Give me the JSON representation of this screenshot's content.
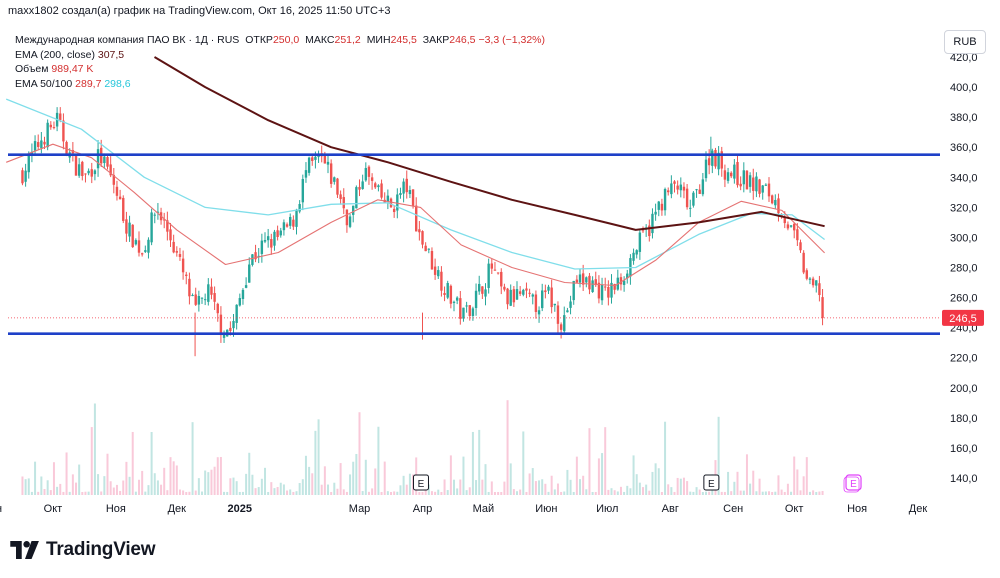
{
  "caption": "maxx1802 создал(а) график на TradingView.com, Окт 16, 2025 11:50 UTC+3",
  "legend": {
    "symbol": "Международная компания ПАО ВК · 1Д · RUS",
    "open_label": "ОТКР",
    "open": "250,0",
    "high_label": "МАКС",
    "high": "251,2",
    "low_label": "МИН",
    "low": "245,5",
    "close_label": "ЗАКР",
    "close": "246,5",
    "change": "−3,3 (−1,32%)",
    "ema200_label": "EMA (200, close)",
    "ema200": "307,5",
    "volume_label": "Объем",
    "volume": "989,47 K",
    "ema50_100_label": "EMA 50/100",
    "ema50": "289,7",
    "ema100": "298,6"
  },
  "currency_button": "RUB",
  "brand": "TradingView",
  "colors": {
    "up": "#26a69a",
    "down": "#ef5350",
    "level_lines": "#1e40c8",
    "ema200": "#5d1313",
    "ema50": "#e57373",
    "ema100": "#80deea",
    "price_badge": "#f23645"
  },
  "chart_data": {
    "type": "candlestick",
    "x_ticks": [
      "Сен",
      "Окт",
      "Ноя",
      "Дек",
      "2025",
      "Мар",
      "Апр",
      "Май",
      "Июн",
      "Июл",
      "Авг",
      "Сен",
      "Окт",
      "Ноя",
      "Дек"
    ],
    "y_ticks": [
      "420,0",
      "400,0",
      "380,0",
      "360,0",
      "340,0",
      "320,0",
      "300,0",
      "280,0",
      "260,0",
      "240,0",
      "220,0",
      "200,0",
      "180,0",
      "160,0",
      "140,0"
    ],
    "ylim": [
      135,
      425
    ],
    "last_price": "246,5",
    "horizontal_levels": [
      355,
      236
    ],
    "close_series": [
      {
        "d": "2024-09-16",
        "v": 343
      },
      {
        "d": "2024-09-25",
        "v": 365
      },
      {
        "d": "2024-10-03",
        "v": 378
      },
      {
        "d": "2024-10-10",
        "v": 352
      },
      {
        "d": "2024-10-17",
        "v": 340
      },
      {
        "d": "2024-10-24",
        "v": 355
      },
      {
        "d": "2024-10-31",
        "v": 335
      },
      {
        "d": "2024-11-07",
        "v": 305
      },
      {
        "d": "2024-11-14",
        "v": 290
      },
      {
        "d": "2024-11-21",
        "v": 320
      },
      {
        "d": "2024-11-28",
        "v": 300
      },
      {
        "d": "2024-12-05",
        "v": 272
      },
      {
        "d": "2024-12-10",
        "v": 250
      },
      {
        "d": "2024-12-16",
        "v": 265
      },
      {
        "d": "2024-12-23",
        "v": 240
      },
      {
        "d": "2024-12-28",
        "v": 238
      },
      {
        "d": "2025-01-06",
        "v": 285
      },
      {
        "d": "2025-01-13",
        "v": 295
      },
      {
        "d": "2025-01-20",
        "v": 300
      },
      {
        "d": "2025-01-27",
        "v": 310
      },
      {
        "d": "2025-02-03",
        "v": 345
      },
      {
        "d": "2025-02-10",
        "v": 352
      },
      {
        "d": "2025-02-17",
        "v": 335
      },
      {
        "d": "2025-02-24",
        "v": 310
      },
      {
        "d": "2025-03-03",
        "v": 345
      },
      {
        "d": "2025-03-10",
        "v": 328
      },
      {
        "d": "2025-03-17",
        "v": 320
      },
      {
        "d": "2025-03-24",
        "v": 335
      },
      {
        "d": "2025-03-31",
        "v": 300
      },
      {
        "d": "2025-04-07",
        "v": 280
      },
      {
        "d": "2025-04-14",
        "v": 262
      },
      {
        "d": "2025-04-21",
        "v": 248
      },
      {
        "d": "2025-04-28",
        "v": 262
      },
      {
        "d": "2025-05-05",
        "v": 280
      },
      {
        "d": "2025-05-12",
        "v": 258
      },
      {
        "d": "2025-05-19",
        "v": 262
      },
      {
        "d": "2025-05-26",
        "v": 255
      },
      {
        "d": "2025-06-02",
        "v": 262
      },
      {
        "d": "2025-06-09",
        "v": 243
      },
      {
        "d": "2025-06-16",
        "v": 272
      },
      {
        "d": "2025-06-23",
        "v": 270
      },
      {
        "d": "2025-06-30",
        "v": 262
      },
      {
        "d": "2025-07-07",
        "v": 270
      },
      {
        "d": "2025-07-14",
        "v": 290
      },
      {
        "d": "2025-07-21",
        "v": 305
      },
      {
        "d": "2025-07-28",
        "v": 325
      },
      {
        "d": "2025-08-04",
        "v": 335
      },
      {
        "d": "2025-08-11",
        "v": 318
      },
      {
        "d": "2025-08-18",
        "v": 345
      },
      {
        "d": "2025-08-21",
        "v": 358
      },
      {
        "d": "2025-08-28",
        "v": 345
      },
      {
        "d": "2025-09-04",
        "v": 340
      },
      {
        "d": "2025-09-11",
        "v": 335
      },
      {
        "d": "2025-09-18",
        "v": 330
      },
      {
        "d": "2025-09-25",
        "v": 318
      },
      {
        "d": "2025-10-02",
        "v": 296
      },
      {
        "d": "2025-10-09",
        "v": 265
      },
      {
        "d": "2025-10-13",
        "v": 268
      },
      {
        "d": "2025-10-16",
        "v": 246.5
      }
    ],
    "ema200_points": [
      {
        "d": "2024-11-20",
        "v": 420
      },
      {
        "d": "2024-12-15",
        "v": 400
      },
      {
        "d": "2025-01-15",
        "v": 378
      },
      {
        "d": "2025-02-15",
        "v": 360
      },
      {
        "d": "2025-03-15",
        "v": 350
      },
      {
        "d": "2025-04-15",
        "v": 337
      },
      {
        "d": "2025-05-15",
        "v": 325
      },
      {
        "d": "2025-06-15",
        "v": 315
      },
      {
        "d": "2025-07-15",
        "v": 305
      },
      {
        "d": "2025-08-15",
        "v": 310
      },
      {
        "d": "2025-09-15",
        "v": 317
      },
      {
        "d": "2025-10-16",
        "v": 307.5
      }
    ],
    "ema50_points": [
      {
        "d": "2024-09-08",
        "v": 350
      },
      {
        "d": "2024-10-01",
        "v": 362
      },
      {
        "d": "2024-10-20",
        "v": 353
      },
      {
        "d": "2024-11-10",
        "v": 330
      },
      {
        "d": "2024-12-01",
        "v": 305
      },
      {
        "d": "2024-12-25",
        "v": 282
      },
      {
        "d": "2025-01-20",
        "v": 290
      },
      {
        "d": "2025-02-15",
        "v": 310
      },
      {
        "d": "2025-03-10",
        "v": 325
      },
      {
        "d": "2025-03-31",
        "v": 320
      },
      {
        "d": "2025-04-20",
        "v": 295
      },
      {
        "d": "2025-05-15",
        "v": 280
      },
      {
        "d": "2025-06-10",
        "v": 270
      },
      {
        "d": "2025-07-05",
        "v": 268
      },
      {
        "d": "2025-07-25",
        "v": 285
      },
      {
        "d": "2025-08-15",
        "v": 310
      },
      {
        "d": "2025-09-05",
        "v": 324
      },
      {
        "d": "2025-09-25",
        "v": 318
      },
      {
        "d": "2025-10-16",
        "v": 289.7
      }
    ],
    "ema100_points": [
      {
        "d": "2024-09-08",
        "v": 392
      },
      {
        "d": "2024-10-15",
        "v": 372
      },
      {
        "d": "2024-11-15",
        "v": 340
      },
      {
        "d": "2024-12-15",
        "v": 320
      },
      {
        "d": "2025-01-15",
        "v": 315
      },
      {
        "d": "2025-02-15",
        "v": 322
      },
      {
        "d": "2025-03-15",
        "v": 323
      },
      {
        "d": "2025-04-15",
        "v": 305
      },
      {
        "d": "2025-05-15",
        "v": 290
      },
      {
        "d": "2025-06-15",
        "v": 279
      },
      {
        "d": "2025-07-15",
        "v": 280
      },
      {
        "d": "2025-08-15",
        "v": 302
      },
      {
        "d": "2025-09-10",
        "v": 316
      },
      {
        "d": "2025-09-30",
        "v": 315
      },
      {
        "d": "2025-10-16",
        "v": 298.6
      }
    ],
    "events": [
      {
        "d": "2025-03-31",
        "label": "E",
        "kind": "earnings"
      },
      {
        "d": "2025-08-21",
        "label": "E",
        "kind": "earnings"
      },
      {
        "d": "2025-10-30",
        "label": "E",
        "kind": "upcoming-earnings"
      }
    ]
  }
}
